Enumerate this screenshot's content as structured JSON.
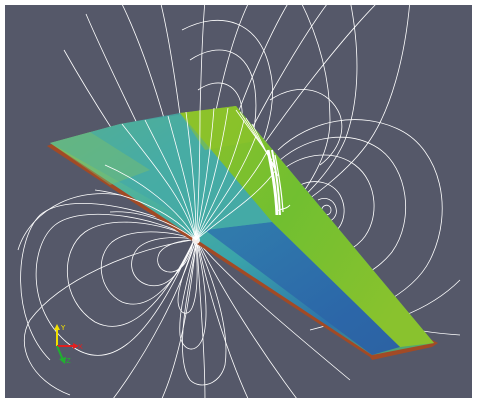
{
  "viewport": {
    "background": "#555869",
    "border": "#ffffff"
  },
  "wing": {
    "colors": {
      "green": "#6fbe2a",
      "yellow_green": "#a6c12c",
      "teal": "#3ea7a4",
      "blue": "#2f6fa8",
      "edge_red": "#a24a25"
    }
  },
  "contours": {
    "color": "#ffffff"
  },
  "orientation_axes": {
    "y_label": "Y",
    "x_label": "X",
    "z_label": "Z",
    "y_color": "#f2e000",
    "x_color": "#e02020",
    "z_color": "#20b030"
  }
}
